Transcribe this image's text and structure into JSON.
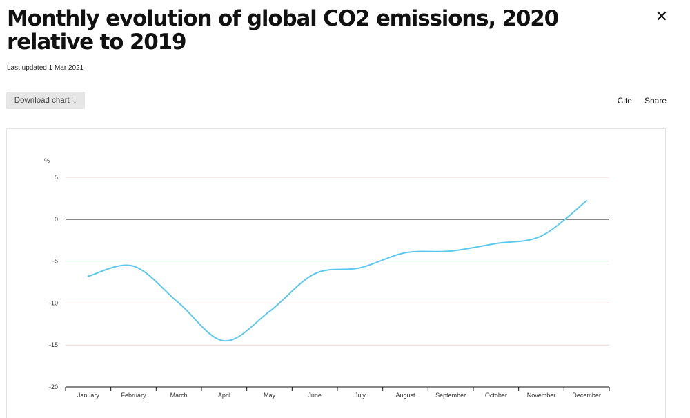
{
  "header": {
    "title": "Monthly evolution of global CO2 emissions, 2020 relative to 2019",
    "last_updated": "Last updated 1 Mar 2021",
    "close_icon": "close-icon"
  },
  "toolbar": {
    "download_label": "Download chart",
    "download_icon": "↓",
    "cite_label": "Cite",
    "share_label": "Share"
  },
  "colors": {
    "line": "#5bc8ef",
    "gridline": "#f3d4d4",
    "zero_line": "#111111"
  },
  "chart_data": {
    "type": "line",
    "ylabel": "%",
    "xlabel": "",
    "title": "",
    "ylim": [
      -20,
      5
    ],
    "yticks": [
      5,
      0,
      -5,
      -10,
      -15,
      -20
    ],
    "grid": true,
    "categories": [
      "January",
      "February",
      "March",
      "April",
      "May",
      "June",
      "July",
      "August",
      "September",
      "October",
      "November",
      "December"
    ],
    "series": [
      {
        "values": [
          -6.8,
          -5.6,
          -10,
          -14.5,
          -11,
          -6.5,
          -5.8,
          -4,
          -3.8,
          -2.9,
          -2,
          2.2
        ]
      }
    ]
  }
}
